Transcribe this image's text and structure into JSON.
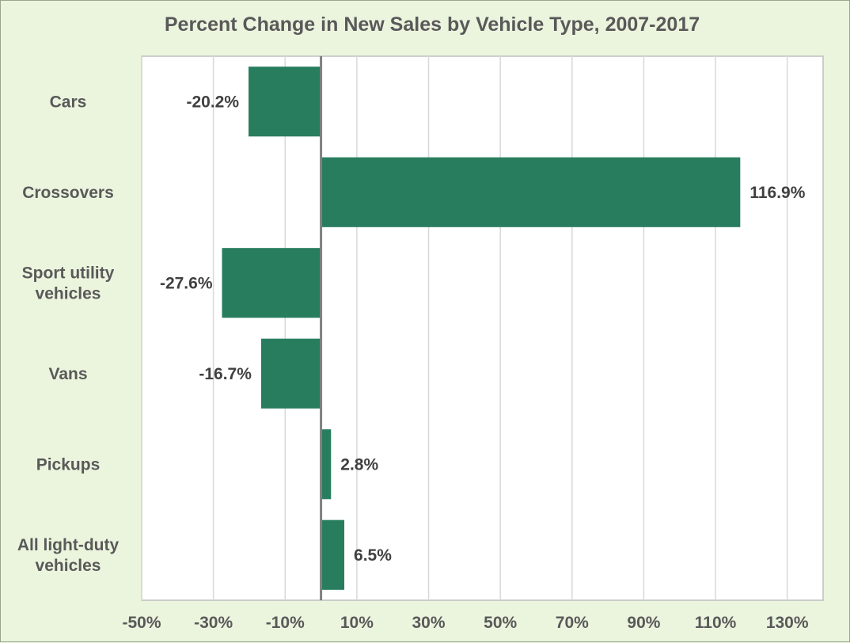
{
  "chart_data": {
    "type": "bar",
    "orientation": "horizontal",
    "title": "Percent Change in New Sales by Vehicle Type, 2007-2017",
    "xlabel": "",
    "ylabel": "",
    "categories": [
      [
        "Cars"
      ],
      [
        "Crossovers"
      ],
      [
        "Sport utility",
        "vehicles"
      ],
      [
        "Vans"
      ],
      [
        "Pickups"
      ],
      [
        "All light-duty",
        "vehicles"
      ]
    ],
    "values": [
      -20.2,
      116.9,
      -27.6,
      -16.7,
      2.8,
      6.5
    ],
    "data_labels": [
      "-20.2%",
      "116.9%",
      "-27.6%",
      "-16.7%",
      "2.8%",
      "6.5%"
    ],
    "xlim": [
      -50,
      140
    ],
    "xticks": [
      -50,
      -30,
      -10,
      10,
      30,
      50,
      70,
      90,
      110,
      130
    ],
    "xtick_labels": [
      "-50%",
      "-30%",
      "-10%",
      "10%",
      "30%",
      "50%",
      "70%",
      "90%",
      "110%",
      "130%"
    ],
    "grid": "vertical",
    "legend": "none",
    "colors": {
      "bar": "#287d5f",
      "background": "#ebf5de",
      "plot_background": "#ffffff",
      "gridline": "#d9d9d9",
      "zero_line": "#808080",
      "text": "#595959"
    }
  }
}
